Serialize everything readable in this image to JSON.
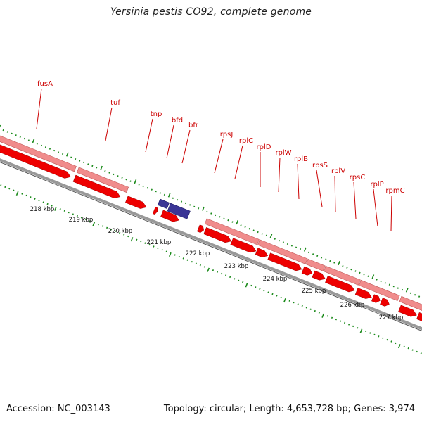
{
  "title": "Yersinia pestis CO92, complete genome",
  "footer": {
    "accession": "Accession: NC_003143",
    "summary": "Topology: circular; Length: 4,653,728 bp; Genes: 3,974"
  },
  "colors": {
    "cds": "#ee0000",
    "cds_light": "#f08c8c",
    "other": "#3a3596",
    "tick": "#1a8a1a",
    "label": "#cc0000",
    "backbone": "#888888"
  },
  "scale": {
    "unit": "kbp",
    "labels": [
      "218 kbp",
      "219 kbp",
      "220 kbp",
      "221 kbp",
      "222 kbp",
      "223 kbp",
      "224 kbp",
      "225 kbp",
      "226 kbp",
      "227 kbp"
    ]
  },
  "gene_labels": [
    "fusA",
    "tuf",
    "tnp",
    "bfd",
    "bfr",
    "rpsJ",
    "rplC",
    "rplD",
    "rplW",
    "rplB",
    "rpsS",
    "rplV",
    "rpsC",
    "rplP",
    "rpmC"
  ]
}
